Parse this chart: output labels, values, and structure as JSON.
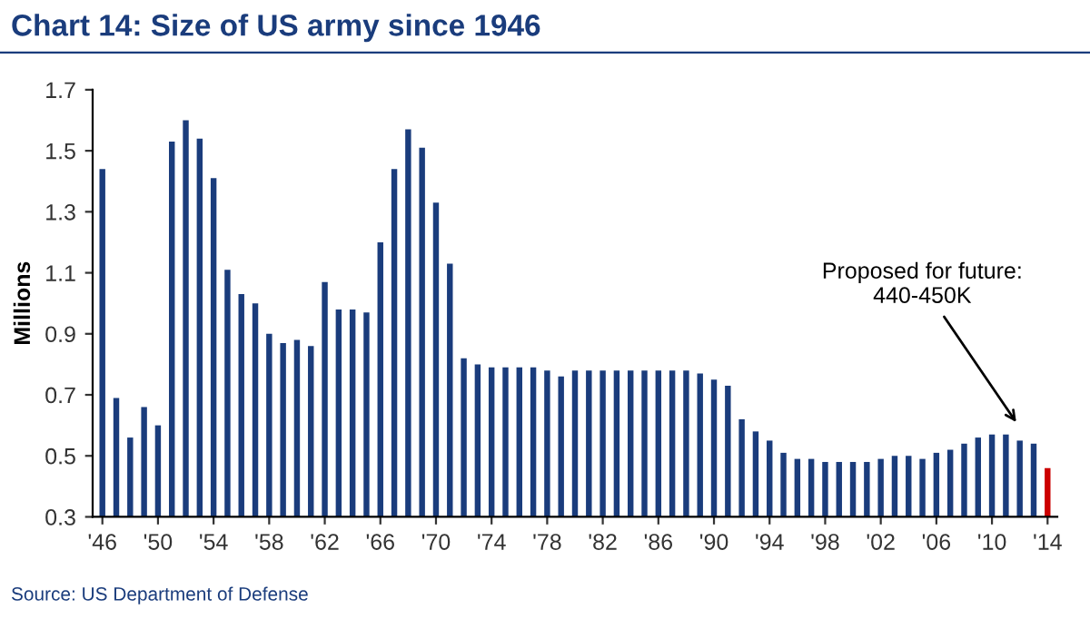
{
  "chart_data": {
    "type": "bar",
    "title": "Chart 14: Size of US army since 1946",
    "ylabel": "Millions",
    "categories": [
      "'46",
      null,
      null,
      null,
      "'50",
      null,
      null,
      null,
      "'54",
      null,
      null,
      null,
      "'58",
      null,
      null,
      null,
      "'62",
      null,
      null,
      null,
      "'66",
      null,
      null,
      null,
      "'70",
      null,
      null,
      null,
      "'74",
      null,
      null,
      null,
      "'78",
      null,
      null,
      null,
      "'82",
      null,
      null,
      null,
      "'86",
      null,
      null,
      null,
      "'90",
      null,
      null,
      null,
      "'94",
      null,
      null,
      null,
      "'98",
      null,
      null,
      null,
      "'02",
      null,
      null,
      null,
      "'06",
      null,
      null,
      null,
      "'10",
      null,
      null,
      null,
      "'14"
    ],
    "values": [
      1.44,
      0.69,
      0.56,
      0.66,
      0.6,
      1.53,
      1.6,
      1.54,
      1.41,
      1.11,
      1.03,
      1.0,
      0.9,
      0.87,
      0.88,
      0.86,
      1.07,
      0.98,
      0.98,
      0.97,
      1.2,
      1.44,
      1.57,
      1.51,
      1.33,
      1.13,
      0.82,
      0.8,
      0.79,
      0.79,
      0.79,
      0.79,
      0.78,
      0.76,
      0.78,
      0.78,
      0.78,
      0.78,
      0.78,
      0.78,
      0.78,
      0.78,
      0.78,
      0.77,
      0.75,
      0.73,
      0.62,
      0.58,
      0.55,
      0.51,
      0.49,
      0.49,
      0.48,
      0.48,
      0.48,
      0.48,
      0.49,
      0.5,
      0.5,
      0.49,
      0.51,
      0.52,
      0.54,
      0.56,
      0.57,
      0.57,
      0.55,
      0.54,
      0.46
    ],
    "colors": [
      "#1a3c7c",
      "#1a3c7c",
      "#1a3c7c",
      "#1a3c7c",
      "#1a3c7c",
      "#1a3c7c",
      "#1a3c7c",
      "#1a3c7c",
      "#1a3c7c",
      "#1a3c7c",
      "#1a3c7c",
      "#1a3c7c",
      "#1a3c7c",
      "#1a3c7c",
      "#1a3c7c",
      "#1a3c7c",
      "#1a3c7c",
      "#1a3c7c",
      "#1a3c7c",
      "#1a3c7c",
      "#1a3c7c",
      "#1a3c7c",
      "#1a3c7c",
      "#1a3c7c",
      "#1a3c7c",
      "#1a3c7c",
      "#1a3c7c",
      "#1a3c7c",
      "#1a3c7c",
      "#1a3c7c",
      "#1a3c7c",
      "#1a3c7c",
      "#1a3c7c",
      "#1a3c7c",
      "#1a3c7c",
      "#1a3c7c",
      "#1a3c7c",
      "#1a3c7c",
      "#1a3c7c",
      "#1a3c7c",
      "#1a3c7c",
      "#1a3c7c",
      "#1a3c7c",
      "#1a3c7c",
      "#1a3c7c",
      "#1a3c7c",
      "#1a3c7c",
      "#1a3c7c",
      "#1a3c7c",
      "#1a3c7c",
      "#1a3c7c",
      "#1a3c7c",
      "#1a3c7c",
      "#1a3c7c",
      "#1a3c7c",
      "#1a3c7c",
      "#1a3c7c",
      "#1a3c7c",
      "#1a3c7c",
      "#1a3c7c",
      "#1a3c7c",
      "#1a3c7c",
      "#1a3c7c",
      "#1a3c7c",
      "#1a3c7c",
      "#1a3c7c",
      "#1a3c7c",
      "#1a3c7c",
      "#cc0000"
    ],
    "ylim": [
      0.3,
      1.7
    ],
    "yticks": [
      0.3,
      0.5,
      0.7,
      0.9,
      1.1,
      1.3,
      1.5,
      1.7
    ],
    "grid": false,
    "legend": false,
    "annotations": [
      "Proposed for future:\n440-450K",
      "Source: US Department of Defense"
    ]
  }
}
